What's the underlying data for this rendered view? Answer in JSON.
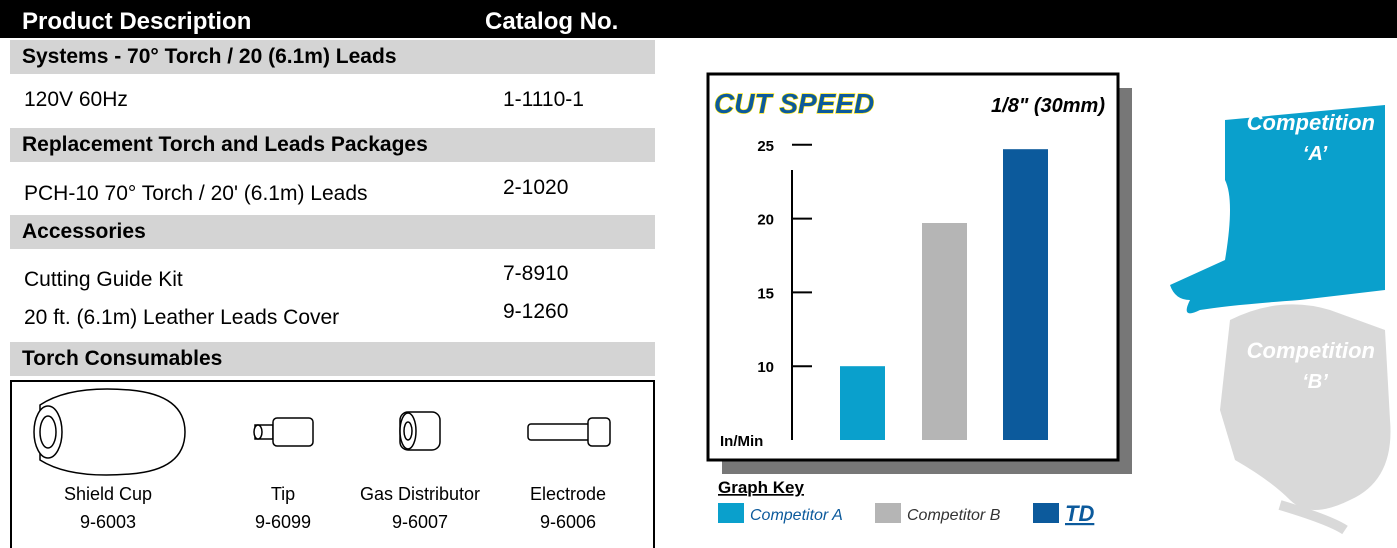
{
  "header": {
    "description": "Product Description",
    "catalog": "Catalog No."
  },
  "sections": [
    {
      "title": "Systems - 70° Torch / 20 (6.1m) Leads",
      "rows": [
        [
          "120V 60Hz",
          "1-1110-1"
        ]
      ]
    },
    {
      "title": "Replacement Torch and Leads Packages",
      "rows": [
        [
          "PCH-10 70° Torch / 20' (6.1m) Leads",
          "2-1020"
        ]
      ]
    },
    {
      "title": "Accessories",
      "rows": [
        [
          "Cutting Guide Kit",
          "7-8910"
        ],
        [
          "20 ft. (6.1m) Leather Leads Cover",
          "9-1260"
        ]
      ]
    }
  ],
  "consumables": {
    "title": "Torch Consumables",
    "items": [
      {
        "name": "Shield Cup",
        "code": "9-6003"
      },
      {
        "name": "Tip",
        "code": "9-6099"
      },
      {
        "name": "Gas Distributor",
        "code": "9-6007"
      },
      {
        "name": "Electrode",
        "code": "9-6006"
      }
    ]
  },
  "chart_data": {
    "type": "bar",
    "title": "CUT SPEED",
    "subtitle": "1/8\" (30mm)",
    "y_label": "In/Min",
    "legend_title": "Graph Key",
    "ylim": [
      5,
      26
    ],
    "yticks": [
      10,
      15,
      20,
      25
    ],
    "series": [
      {
        "name": "Competitor A",
        "color": "#0aa0cc",
        "values": [
          10
        ]
      },
      {
        "name": "Competitor B",
        "color": "#b5b5b5",
        "values": [
          19.7
        ]
      },
      {
        "name": "TD",
        "color": "#0c5a9c",
        "values": [
          24.7
        ]
      }
    ]
  },
  "competition": [
    {
      "label": "Competition",
      "sub": "‘A’",
      "color": "#0aa0cc"
    },
    {
      "label": "Competition",
      "sub": "‘B’",
      "color": "#d9d9d9"
    }
  ]
}
